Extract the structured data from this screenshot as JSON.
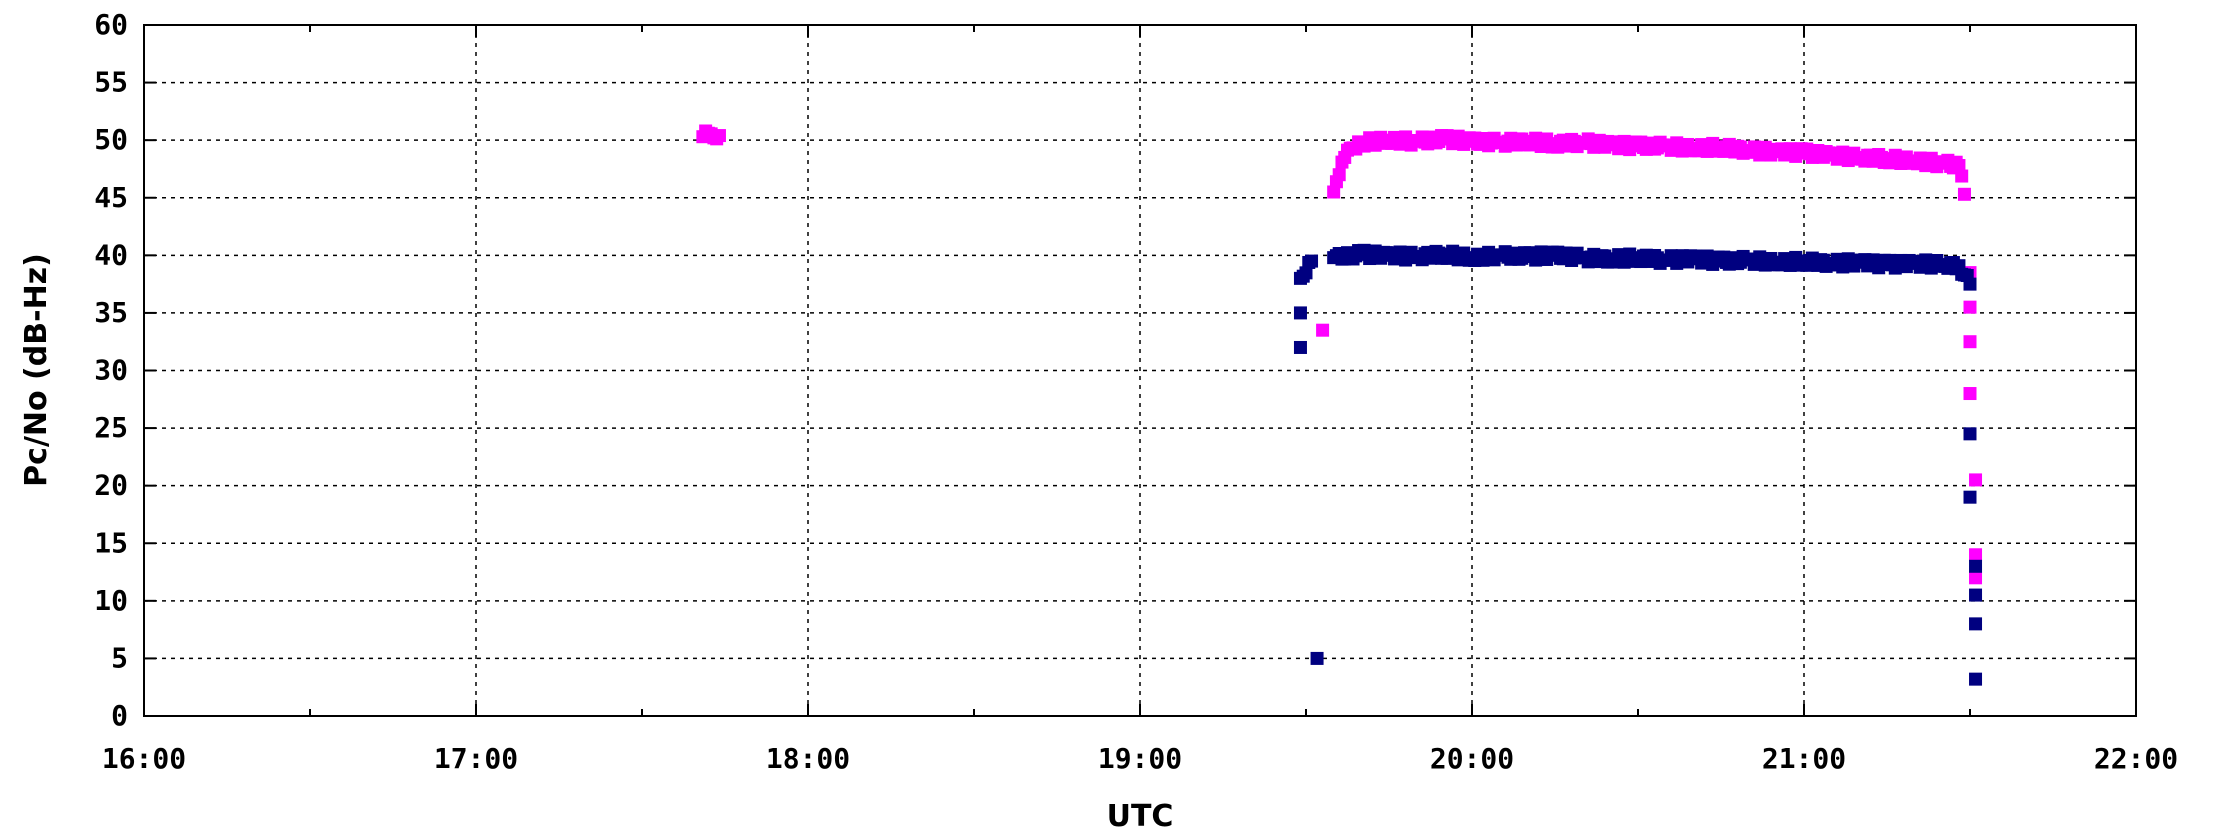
{
  "chart_data": {
    "type": "scatter",
    "title": "",
    "xlabel": "UTC",
    "ylabel": "Pc/No (dB-Hz)",
    "xlim": [
      "16:00",
      "22:00"
    ],
    "ylim": [
      0,
      60
    ],
    "x_ticks": [
      "16:00",
      "17:00",
      "18:00",
      "19:00",
      "20:00",
      "21:00",
      "22:00"
    ],
    "y_ticks": [
      "0",
      "5",
      "10",
      "15",
      "20",
      "25",
      "30",
      "35",
      "40",
      "45",
      "50",
      "55",
      "60"
    ],
    "grid": true,
    "legend": "none",
    "series": [
      {
        "color": "#ff00ff",
        "points": [
          [
            "17:41",
            50.3
          ],
          [
            "17:42",
            50.6
          ],
          [
            "17:43",
            50.2
          ],
          [
            "17:44",
            50.4
          ],
          [
            "19:33",
            33.5
          ],
          [
            "19:35",
            45.5
          ],
          [
            "19:36",
            47.0
          ],
          [
            "19:37",
            48.5
          ],
          [
            "19:38",
            49.3
          ],
          [
            "19:40",
            49.8
          ],
          [
            "19:45",
            50.0
          ],
          [
            "19:50",
            49.9
          ],
          [
            "19:55",
            50.1
          ],
          [
            "20:00",
            49.9
          ],
          [
            "20:05",
            49.8
          ],
          [
            "20:10",
            49.9
          ],
          [
            "20:15",
            49.7
          ],
          [
            "20:20",
            49.8
          ],
          [
            "20:25",
            49.6
          ],
          [
            "20:30",
            49.5
          ],
          [
            "20:35",
            49.5
          ],
          [
            "20:40",
            49.3
          ],
          [
            "20:45",
            49.4
          ],
          [
            "20:50",
            49.1
          ],
          [
            "20:55",
            49.0
          ],
          [
            "21:00",
            48.9
          ],
          [
            "21:05",
            48.7
          ],
          [
            "21:10",
            48.5
          ],
          [
            "21:15",
            48.4
          ],
          [
            "21:20",
            48.2
          ],
          [
            "21:25",
            48.0
          ],
          [
            "21:28",
            47.8
          ],
          [
            "21:29",
            45.3
          ],
          [
            "21:30",
            38.5
          ],
          [
            "21:30",
            35.5
          ],
          [
            "21:30",
            32.5
          ],
          [
            "21:30",
            28.0
          ],
          [
            "21:31",
            20.5
          ],
          [
            "21:31",
            14.0
          ],
          [
            "21:31",
            12.0
          ]
        ]
      },
      {
        "color": "#000080",
        "points": [
          [
            "19:29",
            32.0
          ],
          [
            "19:29",
            35.0
          ],
          [
            "19:29",
            38.0
          ],
          [
            "19:31",
            39.5
          ],
          [
            "19:32",
            5.0
          ],
          [
            "19:35",
            39.8
          ],
          [
            "19:40",
            40.1
          ],
          [
            "19:45",
            40.0
          ],
          [
            "19:50",
            39.9
          ],
          [
            "19:55",
            40.1
          ],
          [
            "20:00",
            39.8
          ],
          [
            "20:05",
            40.0
          ],
          [
            "20:10",
            39.9
          ],
          [
            "20:15",
            40.0
          ],
          [
            "20:20",
            39.8
          ],
          [
            "20:25",
            39.7
          ],
          [
            "20:30",
            39.8
          ],
          [
            "20:35",
            39.6
          ],
          [
            "20:40",
            39.7
          ],
          [
            "20:45",
            39.5
          ],
          [
            "20:50",
            39.6
          ],
          [
            "20:55",
            39.4
          ],
          [
            "21:00",
            39.5
          ],
          [
            "21:05",
            39.3
          ],
          [
            "21:10",
            39.4
          ],
          [
            "21:15",
            39.2
          ],
          [
            "21:20",
            39.3
          ],
          [
            "21:25",
            39.2
          ],
          [
            "21:28",
            39.1
          ],
          [
            "21:30",
            37.5
          ],
          [
            "21:30",
            24.5
          ],
          [
            "21:30",
            19.0
          ],
          [
            "21:31",
            13.0
          ],
          [
            "21:31",
            10.5
          ],
          [
            "21:31",
            8.0
          ],
          [
            "21:31",
            3.2
          ]
        ]
      }
    ]
  }
}
